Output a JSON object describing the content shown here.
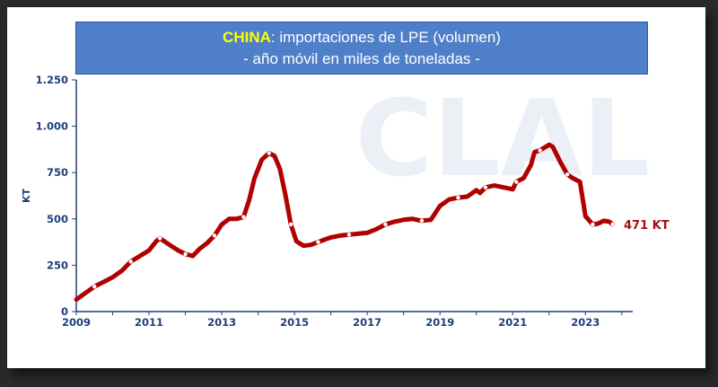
{
  "chart_data": {
    "type": "line",
    "title_highlight": "CHINA",
    "title_rest": ": importaciones de LPE (volumen)",
    "subtitle": "- año móvil en miles de toneladas -",
    "ylabel": "KT",
    "watermark": "CLAL",
    "ylim": [
      0,
      1250
    ],
    "xlim": [
      2009,
      2024.3
    ],
    "x_ticks": [
      2009,
      2011,
      2013,
      2015,
      2017,
      2019,
      2021,
      2023
    ],
    "y_ticks": [
      0,
      250,
      500,
      750,
      1000,
      1250
    ],
    "y_tick_labels": [
      "0",
      "250",
      "500",
      "750",
      "1.000",
      "1.250"
    ],
    "end_label": "471 KT",
    "colors": {
      "line": "#b00000",
      "axis": "#1f3f7a",
      "title_bg": "#4f7fc9",
      "title_highlight": "#ffff00"
    },
    "series": [
      {
        "x": [
          2009.0,
          2009.25,
          2009.5,
          2009.75,
          2010.0,
          2010.25,
          2010.5,
          2010.75,
          2011.0,
          2011.2,
          2011.3,
          2011.45,
          2011.6,
          2011.8,
          2012.0,
          2012.2,
          2012.4,
          2012.6,
          2012.8,
          2013.0,
          2013.2,
          2013.4,
          2013.6,
          2013.75,
          2013.9,
          2014.1,
          2014.3,
          2014.45,
          2014.6,
          2014.75,
          2014.9,
          2015.05,
          2015.25,
          2015.45,
          2015.65,
          2015.85,
          2016.0,
          2016.25,
          2016.5,
          2016.75,
          2017.0,
          2017.25,
          2017.5,
          2017.75,
          2018.0,
          2018.25,
          2018.5,
          2018.75,
          2019.0,
          2019.25,
          2019.5,
          2019.75,
          2020.0,
          2020.1,
          2020.25,
          2020.5,
          2020.75,
          2021.0,
          2021.1,
          2021.3,
          2021.5,
          2021.6,
          2021.75,
          2022.0,
          2022.1,
          2022.3,
          2022.5,
          2022.65,
          2022.85,
          2023.0,
          2023.2,
          2023.35,
          2023.5,
          2023.65,
          2023.75
        ],
        "y": [
          65,
          100,
          135,
          160,
          185,
          220,
          270,
          300,
          330,
          380,
          395,
          375,
          355,
          330,
          310,
          300,
          340,
          370,
          410,
          470,
          500,
          500,
          510,
          600,
          720,
          820,
          855,
          840,
          770,
          630,
          470,
          380,
          355,
          360,
          375,
          390,
          400,
          410,
          415,
          420,
          425,
          445,
          470,
          485,
          495,
          500,
          490,
          495,
          570,
          605,
          615,
          620,
          655,
          640,
          670,
          680,
          670,
          660,
          700,
          720,
          790,
          860,
          870,
          900,
          890,
          810,
          740,
          720,
          700,
          515,
          470,
          475,
          490,
          485,
          471
        ]
      }
    ]
  }
}
